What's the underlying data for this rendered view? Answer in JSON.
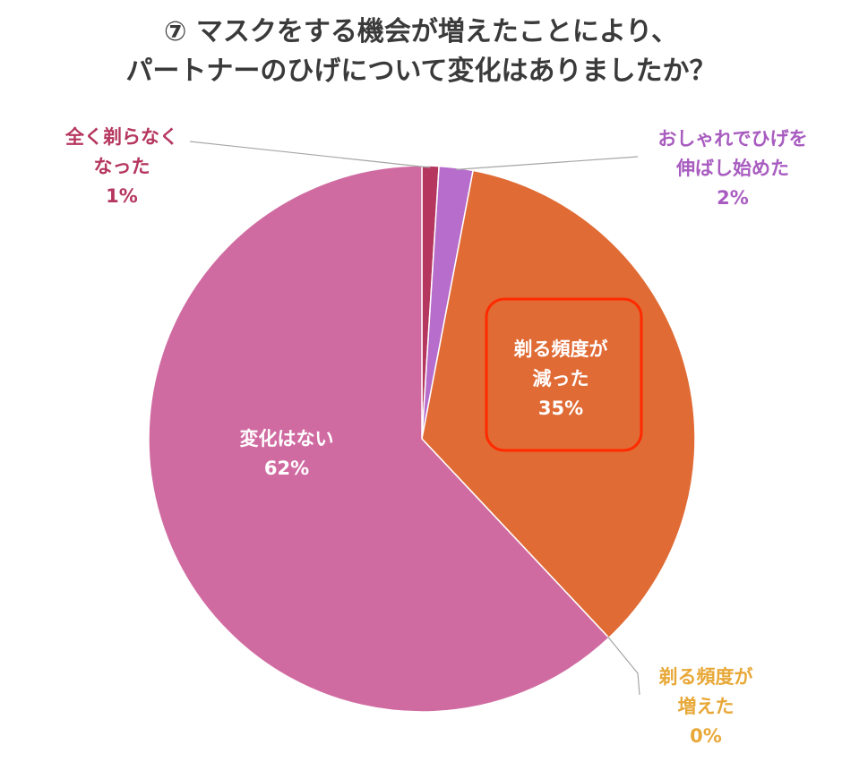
{
  "title": {
    "line1": "⑦ マスクをする機会が増えたことにより、",
    "line2": "パートナーのひげについて変化はありましたか？"
  },
  "chart_data": {
    "type": "pie",
    "title": "⑦ マスクをする機会が増えたことにより、パートナーのひげについて変化はありましたか？",
    "slices": [
      {
        "name": "全く剃らなくなった",
        "label_lines": [
          "全く剃らなく",
          "なった"
        ],
        "value": 1,
        "value_label": "1%",
        "color": "#B5365E",
        "label_color": "#B5365E"
      },
      {
        "name": "おしゃれでひげを伸ばし始めた",
        "label_lines": [
          "おしゃれでひげを",
          "伸ばし始めた"
        ],
        "value": 2,
        "value_label": "2%",
        "color": "#B76DCB",
        "label_color": "#A85CC0"
      },
      {
        "name": "剃る頻度が減った",
        "label_lines": [
          "剃る頻度が",
          "減った"
        ],
        "value": 35,
        "value_label": "35%",
        "color": "#E06B35",
        "label_color": "#FFFFFF"
      },
      {
        "name": "剃る頻度が増えた",
        "label_lines": [
          "剃る頻度が",
          "増えた"
        ],
        "value": 0,
        "value_label": "0%",
        "color": "#E8A838",
        "label_color": "#E8A838"
      },
      {
        "name": "変化はない",
        "label_lines": [
          "変化はない"
        ],
        "value": 62,
        "value_label": "62%",
        "color": "#D06BA1",
        "label_color": "#FFFFFF"
      }
    ],
    "highlight": "剃る頻度が減った",
    "highlight_color": "#FF2A00",
    "leader_color": "#A6A6A6"
  }
}
